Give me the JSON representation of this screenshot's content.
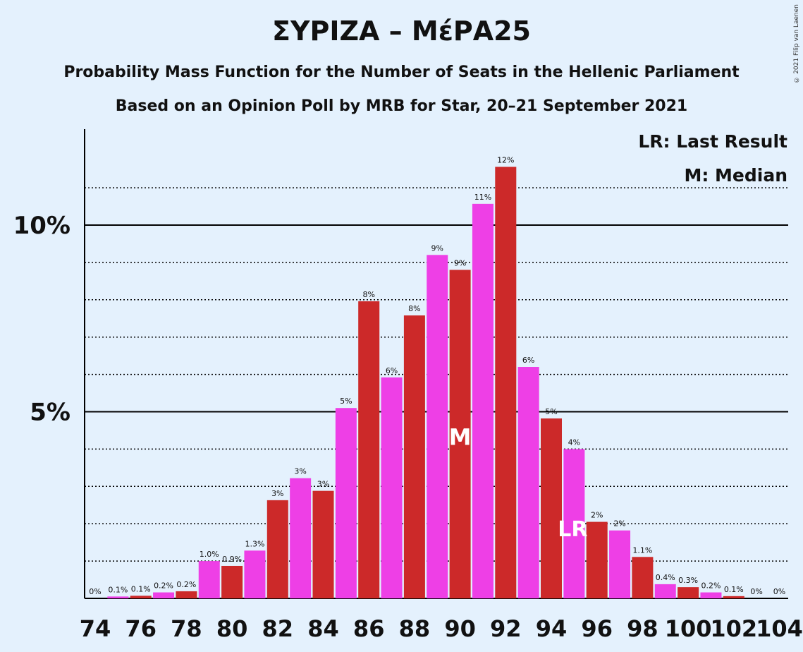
{
  "header": {
    "title": "ΣΥΡΙΖΑ – ΜέΡΑ25",
    "subtitle1": "Probability Mass Function for the Number of Seats in the Hellenic Parliament",
    "subtitle2": "Based on an Opinion Poll by MRB for Star, 20–21 September 2021",
    "copyright": "© 2021 Filip van Laenen"
  },
  "legend": {
    "last_result": "LR: Last Result",
    "median": "M: Median"
  },
  "colors": {
    "background": "#e4f1fd",
    "red": "#cc2929",
    "magenta": "#ee3fe6"
  },
  "chart_data": {
    "type": "bar",
    "xlabel": "",
    "ylabel": "",
    "x": [
      74,
      75,
      76,
      77,
      78,
      79,
      80,
      81,
      82,
      83,
      84,
      85,
      86,
      87,
      88,
      89,
      90,
      91,
      92,
      93,
      94,
      95,
      96,
      97,
      98,
      99,
      100,
      101,
      102,
      103,
      104
    ],
    "values": [
      0,
      0.05,
      0.07,
      0.16,
      0.19,
      1.0,
      0.87,
      1.28,
      2.63,
      3.22,
      2.88,
      5.1,
      7.96,
      5.92,
      7.58,
      9.2,
      8.8,
      10.57,
      11.56,
      6.2,
      4.82,
      4.0,
      2.05,
      1.82,
      1.11,
      0.38,
      0.3,
      0.16,
      0.06,
      0,
      0
    ],
    "data_labels": [
      "0%",
      "0.1%",
      "0.1%",
      "0.2%",
      "0.2%",
      "1.0%",
      "0.9%",
      "1.3%",
      "3%",
      "3%",
      "3%",
      "5%",
      "8%",
      "6%",
      "8%",
      "9%",
      "9%",
      "11%",
      "12%",
      "6%",
      "5%",
      "4%",
      "2%",
      "2%",
      "1.1%",
      "0.4%",
      "0.3%",
      "0.2%",
      "0.1%",
      "0%",
      "0%"
    ],
    "colors": [
      "red",
      "magenta",
      "red",
      "magenta",
      "red",
      "magenta",
      "red",
      "magenta",
      "red",
      "magenta",
      "red",
      "magenta",
      "red",
      "magenta",
      "red",
      "magenta",
      "red",
      "magenta",
      "red",
      "magenta",
      "red",
      "magenta",
      "red",
      "magenta",
      "red",
      "magenta",
      "red",
      "magenta",
      "red",
      "magenta",
      "red"
    ],
    "x_tick_labels": [
      "74",
      "76",
      "78",
      "80",
      "82",
      "84",
      "86",
      "88",
      "90",
      "92",
      "94",
      "96",
      "98",
      "100",
      "102",
      "104"
    ],
    "y_tick_labels": [
      {
        "value": 5,
        "label": "5%"
      },
      {
        "value": 10,
        "label": "10%"
      }
    ],
    "ylim": [
      0,
      12.6
    ],
    "gridlines_dotted": [
      1,
      2,
      3,
      4,
      6,
      7,
      8,
      9,
      11
    ],
    "gridlines_solid": [
      5,
      10
    ],
    "median": {
      "x": 90,
      "label": "M"
    },
    "last_result": {
      "x": 95,
      "label": "LR"
    }
  }
}
